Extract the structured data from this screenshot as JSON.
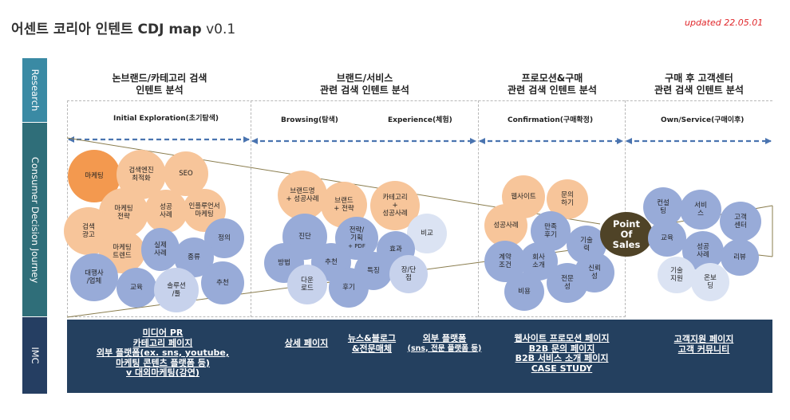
{
  "header": {
    "title_main": "어센트 코리아 인텐트 CDJ map",
    "title_version": "v0.1",
    "updated": "updated 22.05.01"
  },
  "sidebar": {
    "research": "Research",
    "journey": "Consumer Decision Journey",
    "imc": "IMC"
  },
  "stages": [
    {
      "line1": "논브랜드/카테고리 검색",
      "line2": "인텐트 분석"
    },
    {
      "line1": "브랜드/서비스",
      "line2": "관련 검색 인텐트 분석"
    },
    {
      "line1": "프로모션&구매",
      "line2": "관련 검색 인텐트 분석"
    },
    {
      "line1": "구매 후 고객센터",
      "line2": "관련 검색 인텐트 분석"
    }
  ],
  "phases": {
    "initial": "Initial Exploration(초기탐색)",
    "browsing": "Browsing(탐색)",
    "experience": "Experience(체험)",
    "confirmation": "Confirmation(구매확정)",
    "own": "Own/Service(구매이후)"
  },
  "pos": {
    "l1": "Point",
    "l2": "Of",
    "l3": "Sales"
  },
  "colors": {
    "research": "#3a8aa4",
    "journey": "#2f6e79",
    "imc": "#24405f",
    "arrow": "#4a74b0",
    "orange_dark": "#f3994f",
    "orange_light": "#f7c59a",
    "blue": "#98abd8",
    "pos": "#4f4327",
    "updated": "#e0262a"
  },
  "circles": {
    "marketing": "마케팅",
    "search_engine": {
      "l1": "검색엔진",
      "l2": "최적화"
    },
    "seo": "SEO",
    "marketing_strategy": {
      "l1": "마케팅",
      "l2": "전략"
    },
    "success_case_1": {
      "l1": "성공",
      "l2": "사례"
    },
    "influencer": {
      "l1": "인플루언서",
      "l2": "마케팅"
    },
    "search_ad": {
      "l1": "검색",
      "l2": "광고"
    },
    "marketing_trend": {
      "l1": "마케팅",
      "l2": "트렌드"
    },
    "practice_case": {
      "l1": "실제",
      "l2": "사례"
    },
    "definition": "정의",
    "type": "종류",
    "agency": {
      "l1": "대행사",
      "l2": "/업체"
    },
    "education_1": "교육",
    "solution_tool": {
      "l1": "솔루션",
      "l2": "/툴"
    },
    "recommend_1": "추천",
    "brand_case": {
      "l1": "브랜드명",
      "l2": "+ 성공사례"
    },
    "brand_strategy": {
      "l1": "브랜드",
      "l2": "+ 전략"
    },
    "category_case": {
      "l1": "카테고리",
      "l2": "+",
      "l3": "성공사례"
    },
    "diagnosis": "진단",
    "strategy_plan": {
      "l1": "전략/",
      "l2": "기획",
      "l3": "+ PDF"
    },
    "compare": "비교",
    "effect": "효과",
    "method": "방법",
    "recommend_2": "추천",
    "feature": "특징",
    "pros_cons": {
      "l1": "장/단",
      "l2": "점"
    },
    "download": {
      "l1": "다운",
      "l2": "로드"
    },
    "review": "후기",
    "website": "웹사이트",
    "inquiry": {
      "l1": "문의",
      "l2": "하기"
    },
    "success_case_3": "성공사례",
    "satisfaction": {
      "l1": "만족",
      "l2": "후기"
    },
    "tech": {
      "l1": "기술",
      "l2": "력"
    },
    "contract": {
      "l1": "계약",
      "l2": "조건"
    },
    "company_intro": {
      "l1": "회사",
      "l2": "소개"
    },
    "trust": {
      "l1": "신뢰",
      "l2": "성"
    },
    "expertise": {
      "l1": "전문",
      "l2": "성"
    },
    "cost": "비용",
    "consulting": {
      "l1": "컨설",
      "l2": "팅"
    },
    "service": {
      "l1": "서비",
      "l2": "스"
    },
    "customer_center": {
      "l1": "고객",
      "l2": "센터"
    },
    "education_4": "교육",
    "success_case_4": {
      "l1": "성공",
      "l2": "사례"
    },
    "review_4": "리뷰",
    "tech_support": {
      "l1": "기술",
      "l2": "지원"
    },
    "onboarding": {
      "l1": "온보",
      "l2": "딩"
    }
  },
  "imc": {
    "col1": [
      "미디어 PR",
      "카테고리 페이지",
      "외부 플랫폼(ex. sns, youtube,",
      "마케팅 콘텐츠 플랫폼 등)",
      "v 대외마케팅(강연)"
    ],
    "col2a": [
      "상세 페이지"
    ],
    "col2b": [
      "뉴스&블로그",
      "&전문매체"
    ],
    "col2c": [
      "외부 플랫폼",
      "(sns, 전문 플랫폼 등)"
    ],
    "col3": [
      "웹사이트 프로모션 페이지",
      "B2B 문의 페이지",
      "B2B 서비스 소개 페이지",
      "CASE STUDY"
    ],
    "col4": [
      "고객지원 페이지",
      "고객 커뮤니티"
    ]
  }
}
